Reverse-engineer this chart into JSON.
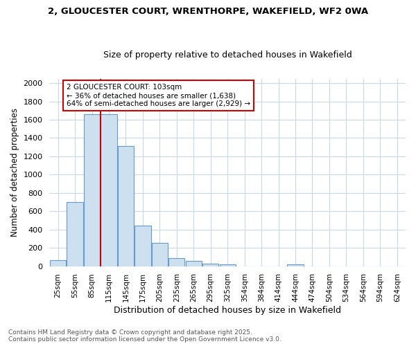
{
  "title1": "2, GLOUCESTER COURT, WRENTHORPE, WAKEFIELD, WF2 0WA",
  "title2": "Size of property relative to detached houses in Wakefield",
  "xlabel": "Distribution of detached houses by size in Wakefield",
  "ylabel": "Number of detached properties",
  "categories": [
    "25sqm",
    "55sqm",
    "85sqm",
    "115sqm",
    "145sqm",
    "175sqm",
    "205sqm",
    "235sqm",
    "265sqm",
    "295sqm",
    "325sqm",
    "354sqm",
    "384sqm",
    "414sqm",
    "444sqm",
    "474sqm",
    "504sqm",
    "534sqm",
    "564sqm",
    "594sqm",
    "624sqm"
  ],
  "values": [
    65,
    700,
    1660,
    1660,
    1310,
    440,
    255,
    90,
    55,
    30,
    20,
    0,
    0,
    0,
    20,
    0,
    0,
    0,
    0,
    0,
    0
  ],
  "bar_color": "#cce0f0",
  "bar_edge_color": "#6699cc",
  "vline_x": 2.5,
  "vline_color": "#cc0000",
  "annotation_text": "2 GLOUCESTER COURT: 103sqm\n← 36% of detached houses are smaller (1,638)\n64% of semi-detached houses are larger (2,929) →",
  "annotation_box_color": "#cc0000",
  "ylim": [
    0,
    2050
  ],
  "yticks": [
    0,
    200,
    400,
    600,
    800,
    1000,
    1200,
    1400,
    1600,
    1800,
    2000
  ],
  "footer1": "Contains HM Land Registry data © Crown copyright and database right 2025.",
  "footer2": "Contains public sector information licensed under the Open Government Licence v3.0.",
  "bg_color": "#ffffff",
  "plot_bg_color": "#ffffff",
  "grid_color": "#c8d8e8"
}
